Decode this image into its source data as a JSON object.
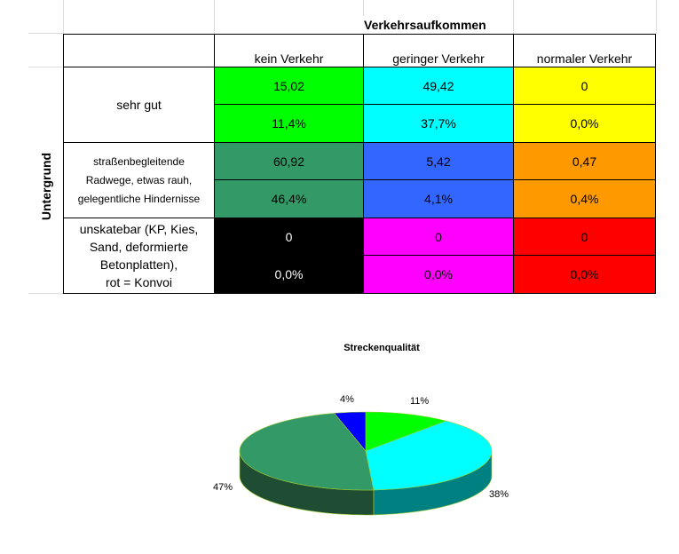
{
  "header": {
    "title": "Verkehrsaufkommen"
  },
  "row_axis_label": "Untergrund",
  "columns": [
    "kein Verkehr",
    "geringer Verkehr",
    "normaler Verkehr"
  ],
  "rows": [
    {
      "label": "sehr gut",
      "values": [
        "15,02",
        "49,42",
        "0"
      ],
      "percents": [
        "11,4%",
        "37,7%",
        "0,0%"
      ],
      "colors": [
        "#00ff00",
        "#00ffff",
        "#ffff00"
      ]
    },
    {
      "label_lines": [
        "straßenbegleitende",
        "Radwege, etwas rauh,",
        "gelegentliche Hindernisse"
      ],
      "values": [
        "60,92",
        "5,42",
        "0,47"
      ],
      "percents": [
        "46,4%",
        "4,1%",
        "0,4%"
      ],
      "colors": [
        "#339966",
        "#3366ff",
        "#ff9900"
      ]
    },
    {
      "label_lines": [
        "unskatebar (KP, Kies,",
        "Sand, deformierte",
        "Betonplatten),",
        "rot = Konvoi"
      ],
      "values": [
        "0",
        "0",
        "0"
      ],
      "percents": [
        "0,0%",
        "0,0%",
        "0,0%"
      ],
      "colors": [
        "#000000",
        "#ff00ff",
        "#ff0000"
      ]
    }
  ],
  "chart_data": {
    "type": "pie",
    "title": "Streckenqualität",
    "slices": [
      {
        "label": "11%",
        "value": 11,
        "color": "#00ff00"
      },
      {
        "label": "38%",
        "value": 38,
        "color": "#00ffff"
      },
      {
        "label": "47%",
        "value": 47,
        "color": "#339966"
      },
      {
        "label": "4%",
        "value": 4,
        "color": "#0000ff"
      }
    ]
  }
}
